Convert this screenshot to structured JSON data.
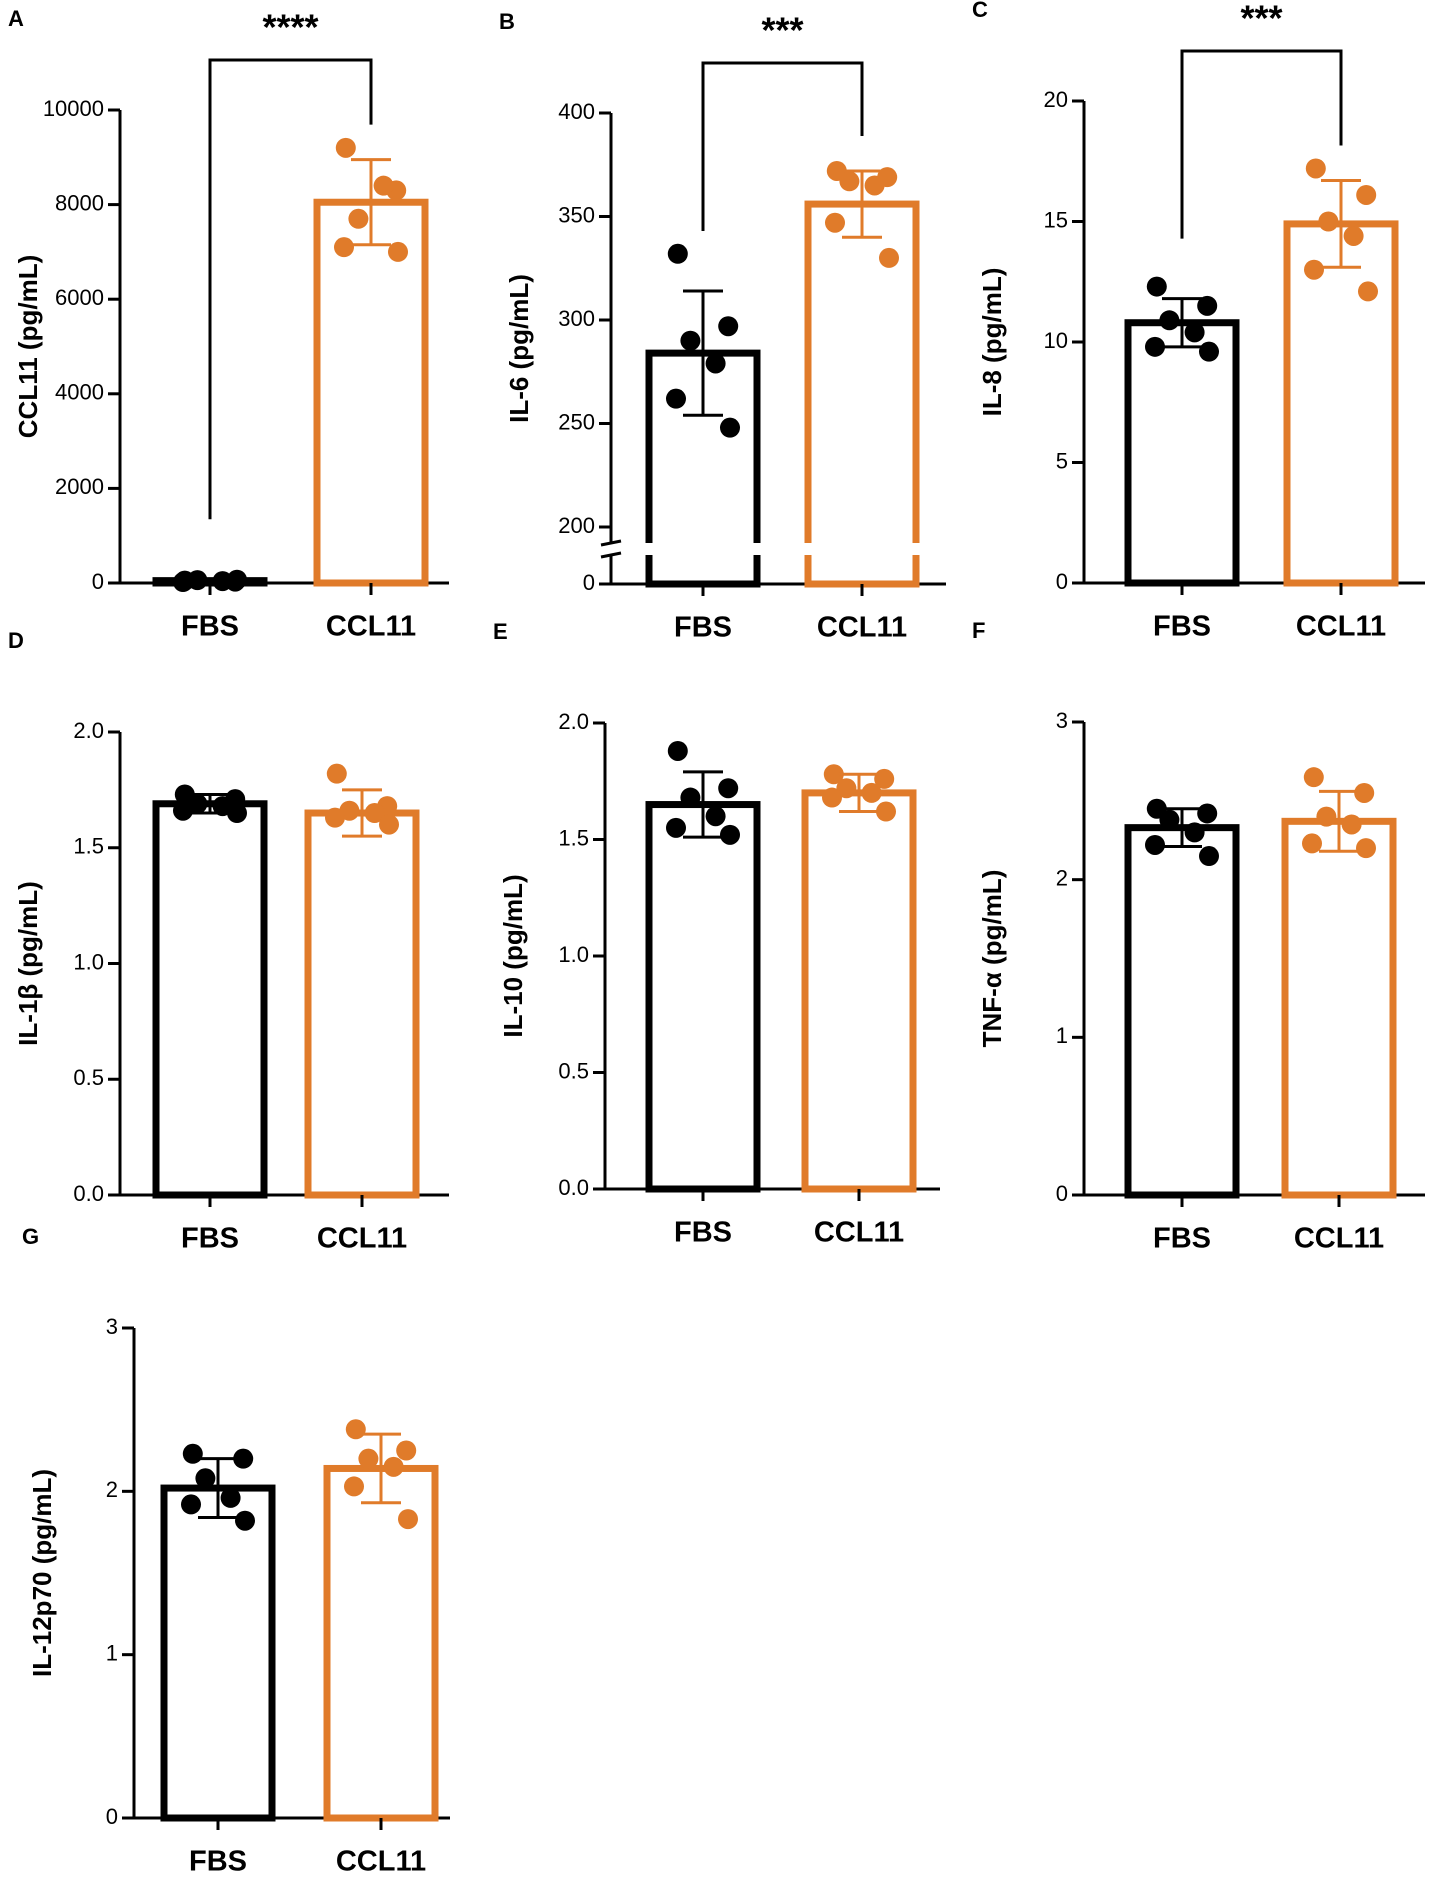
{
  "chart_data": [
    {
      "type": "bar",
      "panel": "A",
      "ylabel": "CCL11 (pg/mL)",
      "categories": [
        "FBS",
        "CCL11"
      ],
      "colors": [
        "#000000",
        "#e07b2a"
      ],
      "values": [
        50,
        8050
      ],
      "errors": [
        30,
        900
      ],
      "points": [
        [
          50,
          30,
          60,
          40,
          20,
          70
        ],
        [
          9200,
          8300,
          7700,
          8400,
          7100,
          7000
        ]
      ],
      "ylim": [
        0,
        10000
      ],
      "yticks": [
        0,
        2000,
        4000,
        6000,
        8000,
        10000
      ],
      "significance": "****"
    },
    {
      "type": "bar",
      "panel": "B",
      "ylabel": "IL-6 (pg/mL)",
      "categories": [
        "FBS",
        "CCL11"
      ],
      "colors": [
        "#000000",
        "#e07b2a"
      ],
      "values": [
        284,
        356
      ],
      "errors": [
        30,
        16
      ],
      "points": [
        [
          332,
          297,
          290,
          279,
          262,
          248
        ],
        [
          372,
          369,
          367,
          365,
          347,
          330
        ]
      ],
      "ylim": [
        0,
        400
      ],
      "axis_break": [
        0,
        200
      ],
      "yticks": [
        0,
        200,
        250,
        300,
        350,
        400
      ],
      "significance": "***"
    },
    {
      "type": "bar",
      "panel": "C",
      "ylabel": "IL-8 (pg/mL)",
      "categories": [
        "FBS",
        "CCL11"
      ],
      "colors": [
        "#000000",
        "#e07b2a"
      ],
      "values": [
        10.8,
        14.9
      ],
      "errors": [
        1.0,
        1.8
      ],
      "points": [
        [
          12.3,
          11.5,
          10.9,
          10.4,
          9.8,
          9.6
        ],
        [
          17.2,
          16.1,
          15.0,
          14.4,
          13.0,
          12.1
        ]
      ],
      "ylim": [
        0,
        20
      ],
      "yticks": [
        0,
        5,
        10,
        15,
        20
      ],
      "significance": "***"
    },
    {
      "type": "bar",
      "panel": "D",
      "ylabel": "IL-1β (pg/mL)",
      "categories": [
        "FBS",
        "CCL11"
      ],
      "colors": [
        "#000000",
        "#e07b2a"
      ],
      "values": [
        1.69,
        1.65
      ],
      "errors": [
        0.04,
        0.1
      ],
      "points": [
        [
          1.73,
          1.71,
          1.69,
          1.68,
          1.66,
          1.65
        ],
        [
          1.82,
          1.68,
          1.66,
          1.65,
          1.63,
          1.6
        ]
      ],
      "ylim": [
        0,
        2
      ],
      "yticks": [
        {
          "value": 0,
          "label": "0.0"
        },
        0.5,
        {
          "value": 1,
          "label": "1.0"
        },
        1.5,
        {
          "value": 2,
          "label": "2.0"
        }
      ]
    },
    {
      "type": "bar",
      "panel": "E",
      "ylabel": "IL-10 (pg/mL)",
      "categories": [
        "FBS",
        "CCL11"
      ],
      "colors": [
        "#000000",
        "#e07b2a"
      ],
      "values": [
        1.65,
        1.7
      ],
      "errors": [
        0.14,
        0.08
      ],
      "points": [
        [
          1.88,
          1.72,
          1.68,
          1.6,
          1.55,
          1.52
        ],
        [
          1.78,
          1.76,
          1.72,
          1.7,
          1.68,
          1.62
        ]
      ],
      "ylim": [
        0,
        2
      ],
      "yticks": [
        {
          "value": 0,
          "label": "0.0"
        },
        0.5,
        {
          "value": 1,
          "label": "1.0"
        },
        1.5,
        {
          "value": 2,
          "label": "2.0"
        }
      ]
    },
    {
      "type": "bar",
      "panel": "F",
      "ylabel": "TNF-α (pg/mL)",
      "categories": [
        "FBS",
        "CCL11"
      ],
      "colors": [
        "#000000",
        "#e07b2a"
      ],
      "values": [
        2.33,
        2.37
      ],
      "errors": [
        0.12,
        0.19
      ],
      "points": [
        [
          2.45,
          2.42,
          2.38,
          2.3,
          2.22,
          2.15
        ],
        [
          2.65,
          2.55,
          2.4,
          2.35,
          2.23,
          2.2
        ]
      ],
      "ylim": [
        0,
        3
      ],
      "yticks": [
        0,
        1,
        2,
        3
      ]
    },
    {
      "type": "bar",
      "panel": "G",
      "ylabel": "IL-12p70 (pg/mL)",
      "categories": [
        "FBS",
        "CCL11"
      ],
      "colors": [
        "#000000",
        "#e07b2a"
      ],
      "values": [
        2.02,
        2.14
      ],
      "errors": [
        0.18,
        0.21
      ],
      "points": [
        [
          2.23,
          2.2,
          2.08,
          1.96,
          1.92,
          1.82
        ],
        [
          2.38,
          2.25,
          2.2,
          2.15,
          2.03,
          1.83
        ]
      ],
      "ylim": [
        0,
        3
      ],
      "yticks": [
        0,
        1,
        2,
        3
      ]
    }
  ]
}
